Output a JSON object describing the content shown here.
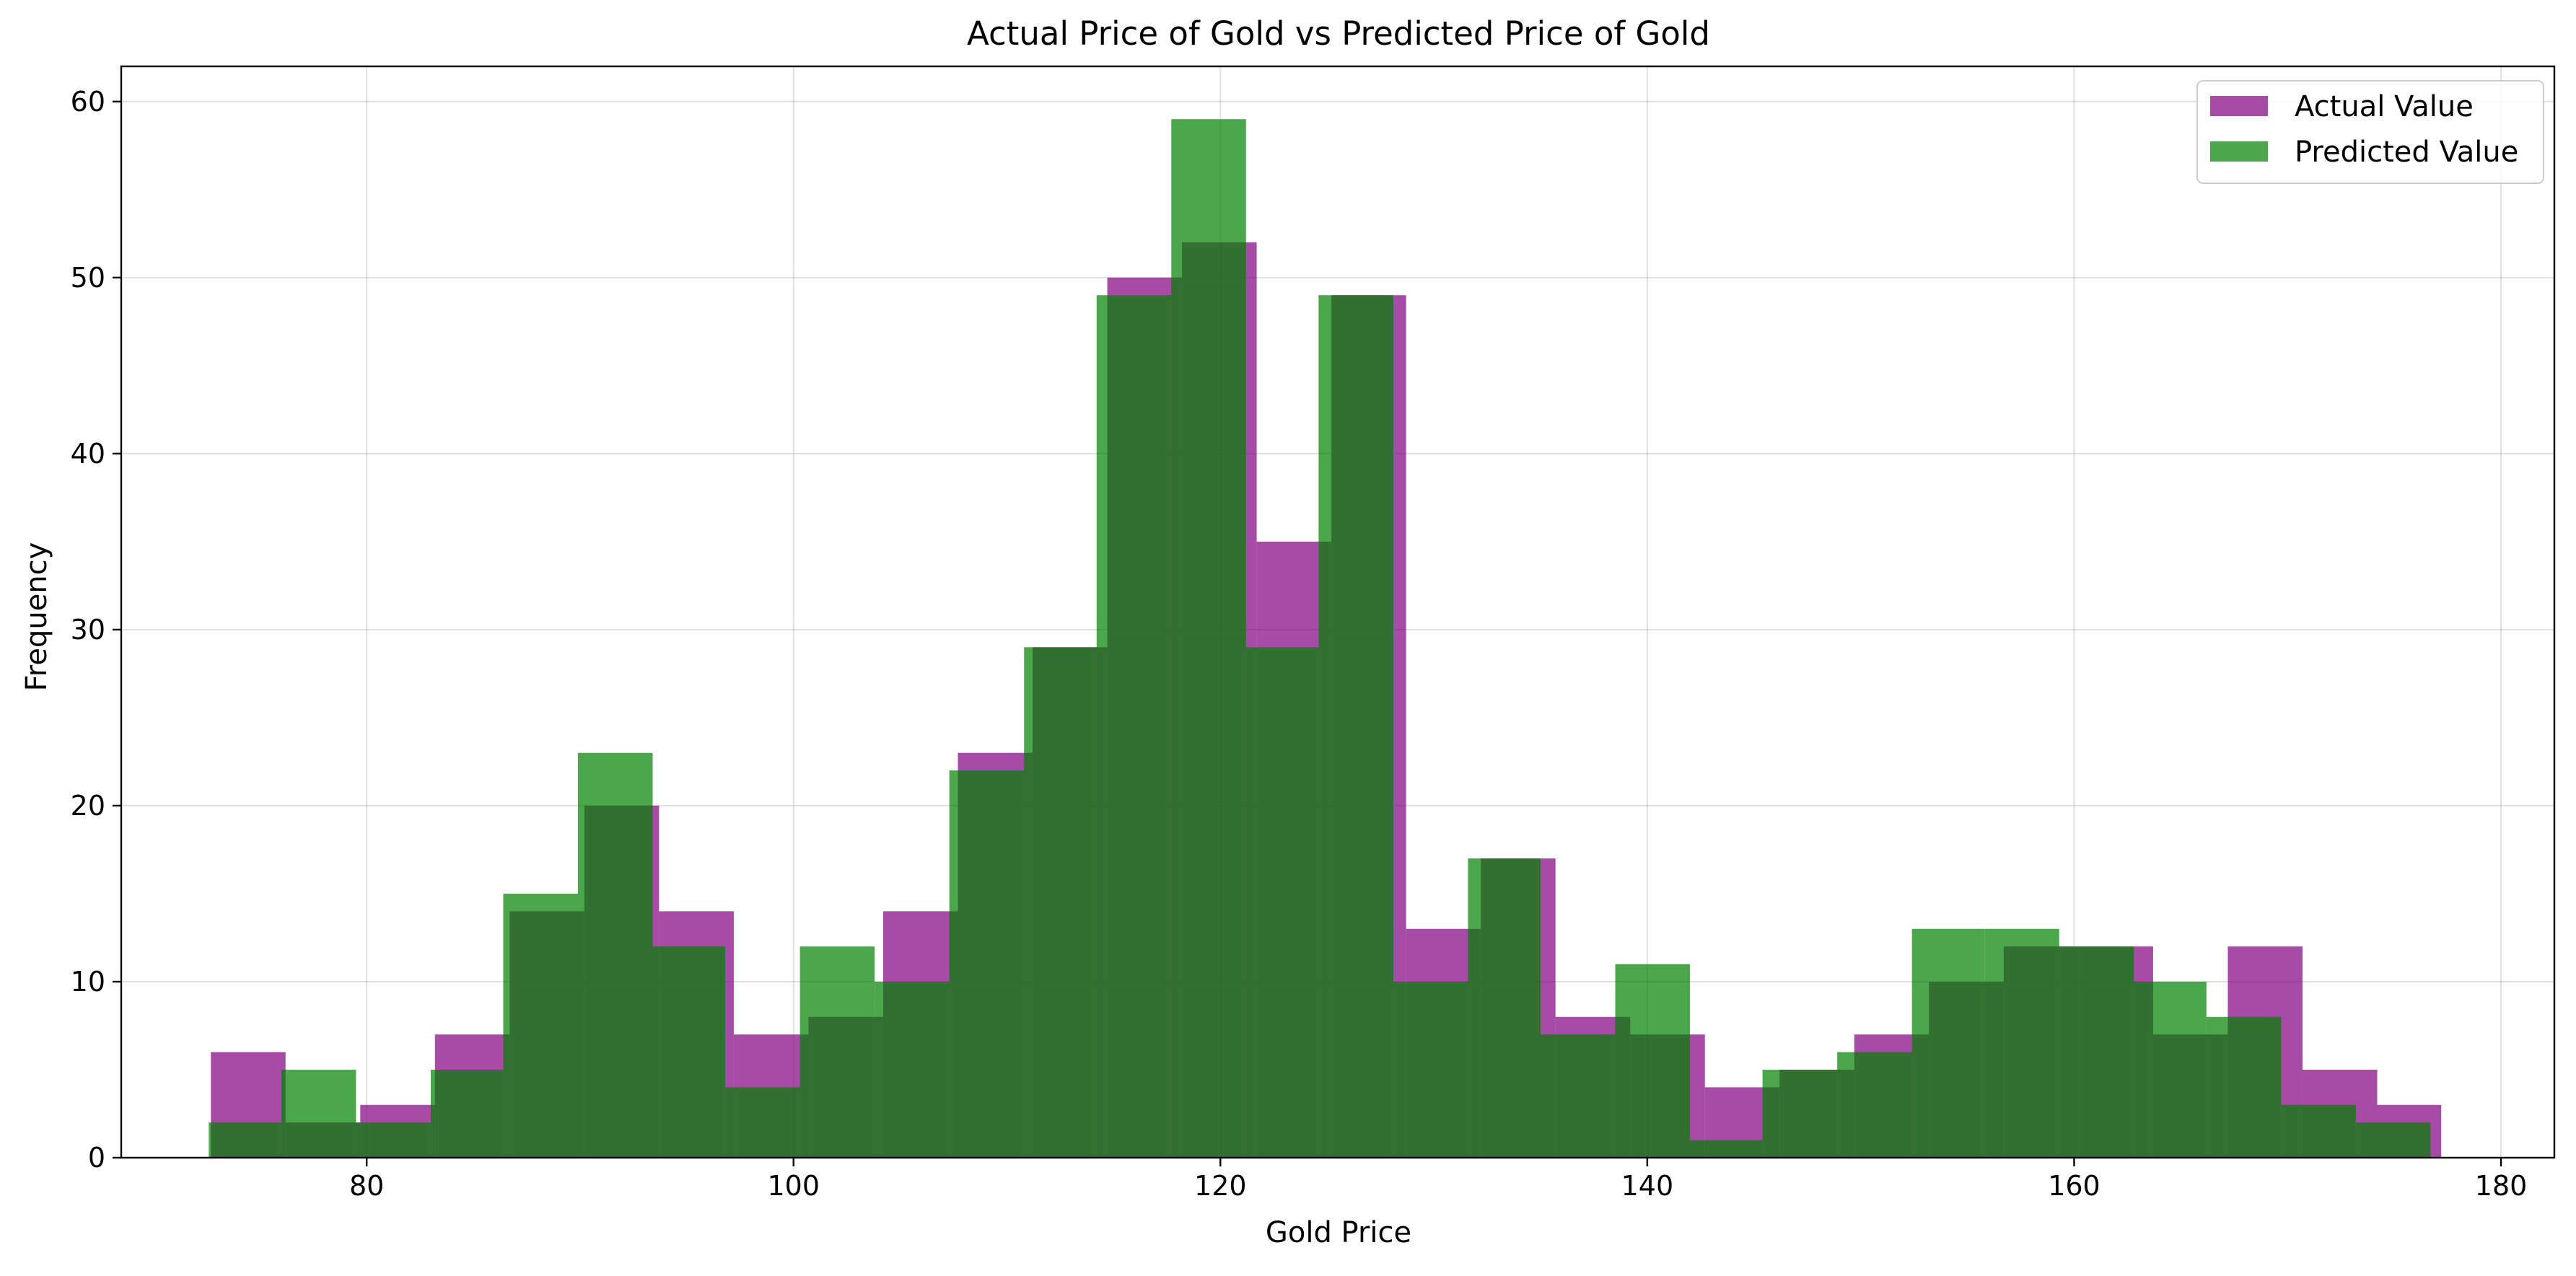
{
  "chart_data": {
    "type": "bar",
    "title": "Actual Price of Gold vs Predicted Price of Gold",
    "xlabel": "Gold Price",
    "ylabel": "Frequency",
    "xlim": [
      68.5,
      182.5
    ],
    "ylim": [
      0,
      62
    ],
    "xticks": [
      80,
      100,
      120,
      140,
      160,
      180
    ],
    "yticks": [
      0,
      10,
      20,
      30,
      40,
      50,
      60
    ],
    "grid": true,
    "legend": "top-right",
    "series": [
      {
        "name": "Actual Value",
        "color": "#800080",
        "opacity": 0.7,
        "bin_edges": [
          72.7,
          76.2,
          79.7,
          83.2,
          86.7,
          90.2,
          93.7,
          97.2,
          100.7,
          104.2,
          107.7,
          111.2,
          114.7,
          118.2,
          121.7,
          125.2,
          128.7,
          132.2,
          135.7,
          139.2,
          142.7,
          146.2,
          149.7,
          153.2,
          156.7,
          160.2,
          163.7,
          167.2,
          170.7,
          174.2,
          177.2
        ],
        "counts": [
          6,
          2,
          3,
          7,
          14,
          20,
          14,
          7,
          8,
          14,
          23,
          29,
          50,
          52,
          35,
          49,
          13,
          17,
          8,
          7,
          4,
          5,
          7,
          10,
          12,
          12,
          7,
          12,
          5,
          3
        ]
      },
      {
        "name": "Predicted Value",
        "color": "#008000",
        "opacity": 0.7,
        "bin_edges": [
          72.6,
          76.0,
          79.5,
          83.0,
          86.4,
          89.9,
          93.4,
          96.8,
          100.3,
          103.8,
          107.3,
          110.8,
          114.2,
          117.7,
          121.2,
          124.6,
          128.1,
          131.6,
          135.0,
          138.5,
          142.0,
          145.4,
          148.9,
          152.4,
          155.8,
          159.3,
          162.8,
          166.2,
          169.7,
          173.2,
          176.7
        ],
        "counts": [
          2,
          5,
          2,
          5,
          15,
          23,
          12,
          4,
          12,
          10,
          22,
          29,
          49,
          59,
          29,
          49,
          10,
          17,
          7,
          11,
          1,
          5,
          6,
          13,
          13,
          12,
          10,
          8,
          3,
          2
        ]
      }
    ]
  }
}
